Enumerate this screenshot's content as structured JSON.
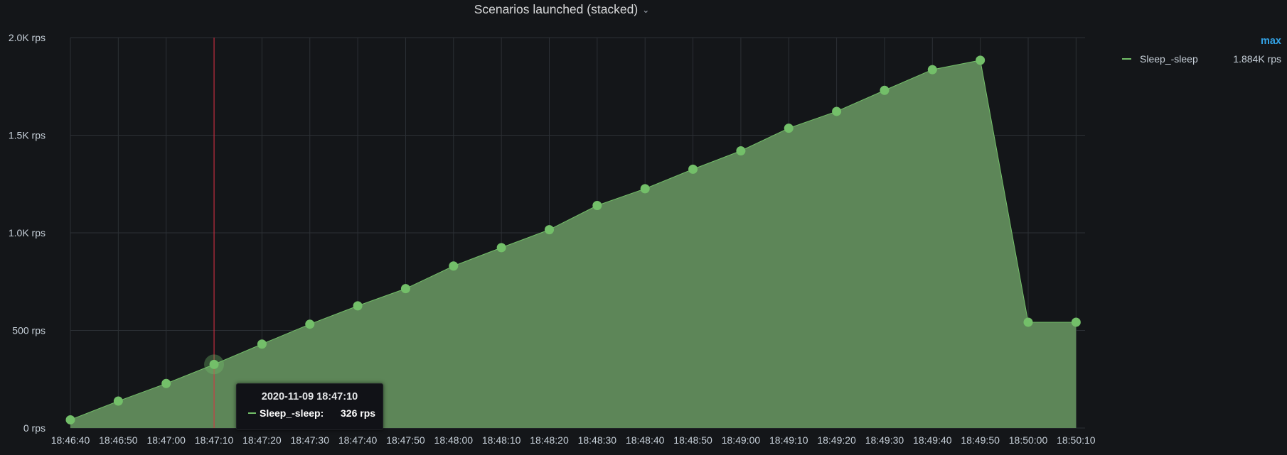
{
  "panel": {
    "title": "Scenarios launched (stacked)",
    "title_caret": "⌄"
  },
  "legend": {
    "header": "max",
    "items": [
      {
        "name": "Sleep_-sleep",
        "max": "1.884K rps",
        "color": "#73bf69"
      }
    ]
  },
  "tooltip": {
    "time": "2020-11-09 18:47:10",
    "series": "Sleep_-sleep:",
    "value": "326 rps"
  },
  "colors": {
    "series": "#73bf69",
    "fill": "#5d8658",
    "cursor": "#e02f44",
    "grid": "#2c3035",
    "background": "#141619"
  },
  "chart_data": {
    "type": "area",
    "stacked": true,
    "title": "Scenarios launched (stacked)",
    "x": [
      "18:46:40",
      "18:46:50",
      "18:47:00",
      "18:47:10",
      "18:47:20",
      "18:47:30",
      "18:47:40",
      "18:47:50",
      "18:48:00",
      "18:48:10",
      "18:48:20",
      "18:48:30",
      "18:48:40",
      "18:48:50",
      "18:49:00",
      "18:49:10",
      "18:49:20",
      "18:49:30",
      "18:49:40",
      "18:49:50",
      "18:50:00",
      "18:50:10"
    ],
    "series": [
      {
        "name": "Sleep_-sleep",
        "values": [
          42,
          138,
          228,
          326,
          430,
          532,
          626,
          714,
          830,
          924,
          1016,
          1140,
          1226,
          1326,
          1420,
          1536,
          1622,
          1730,
          1836,
          1884,
          542,
          542
        ]
      }
    ],
    "ylim": [
      0,
      2000
    ],
    "yticks": [
      0,
      500,
      1000,
      1500,
      2000
    ],
    "ytick_labels": [
      "0 rps",
      "500 rps",
      "1.0K rps",
      "1.5K rps",
      "2.0K rps"
    ],
    "hover_x": "18:47:10",
    "grid": true,
    "legend_position": "right"
  }
}
